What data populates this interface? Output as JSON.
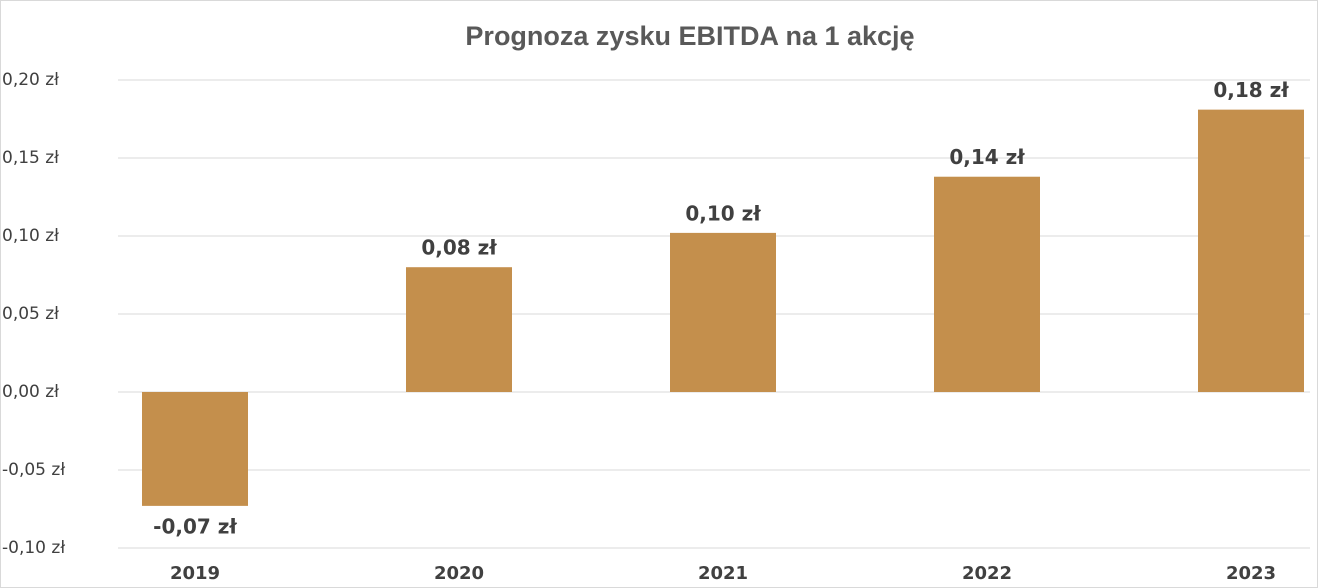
{
  "chart_data": {
    "type": "bar",
    "title": "Prognoza zysku EBITDA na 1 akcję",
    "categories": [
      "2019",
      "2020",
      "2021",
      "2022",
      "2023"
    ],
    "values": [
      -0.073,
      0.08,
      0.102,
      0.138,
      0.181
    ],
    "value_labels": [
      "-0,07 zł",
      "0,08 zł",
      "0,10 zł",
      "0,14 zł",
      "0,18 zł"
    ],
    "color": "#c48f4c",
    "ylim": [
      -0.1,
      0.2
    ],
    "yticks": [
      {
        "value": -0.1,
        "label": "-0,10 zł"
      },
      {
        "value": -0.05,
        "label": "-0,05 zł"
      },
      {
        "value": 0,
        "label": "0,00 zł"
      },
      {
        "value": 0.05,
        "label": "0,05 zł"
      },
      {
        "value": 0.1,
        "label": "0,10 zł"
      },
      {
        "value": 0.15,
        "label": "0,15 zł"
      },
      {
        "value": 0.2,
        "label": "0,20 zł"
      }
    ],
    "grid": true
  }
}
